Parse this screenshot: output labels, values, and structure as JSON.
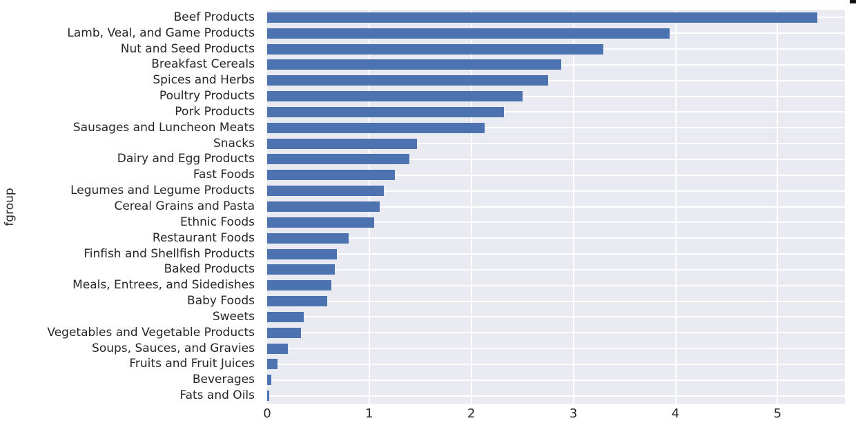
{
  "chart_data": {
    "type": "bar",
    "orientation": "horizontal",
    "title": "",
    "xlabel": "",
    "ylabel": "fgroup",
    "xlim": [
      0,
      5.66
    ],
    "xticks": [
      0,
      1,
      2,
      3,
      4,
      5
    ],
    "grid": true,
    "legend": false,
    "bar_color": "#4c72b0",
    "plot_background": "#eaeaf2",
    "gridline_color": "#ffffff",
    "text_color": "#262626",
    "categories": [
      "Beef Products",
      "Lamb, Veal, and Game Products",
      "Nut and Seed Products",
      "Breakfast Cereals",
      "Spices and Herbs",
      "Poultry Products",
      "Pork Products",
      "Sausages and Luncheon Meats",
      "Snacks",
      "Dairy and Egg Products",
      "Fast Foods",
      "Legumes and Legume Products",
      "Cereal Grains and Pasta",
      "Ethnic Foods",
      "Restaurant Foods",
      "Finfish and Shellfish Products",
      "Baked Products",
      "Meals, Entrees, and Sidedishes",
      "Baby Foods",
      "Sweets",
      "Vegetables and Vegetable Products",
      "Soups, Sauces, and Gravies",
      "Fruits and Fruit Juices",
      "Beverages",
      "Fats and Oils"
    ],
    "values": [
      5.39,
      3.94,
      3.29,
      2.88,
      2.75,
      2.5,
      2.32,
      2.13,
      1.47,
      1.39,
      1.25,
      1.14,
      1.1,
      1.05,
      0.8,
      0.68,
      0.66,
      0.63,
      0.59,
      0.36,
      0.33,
      0.2,
      0.1,
      0.04,
      0.02
    ]
  }
}
